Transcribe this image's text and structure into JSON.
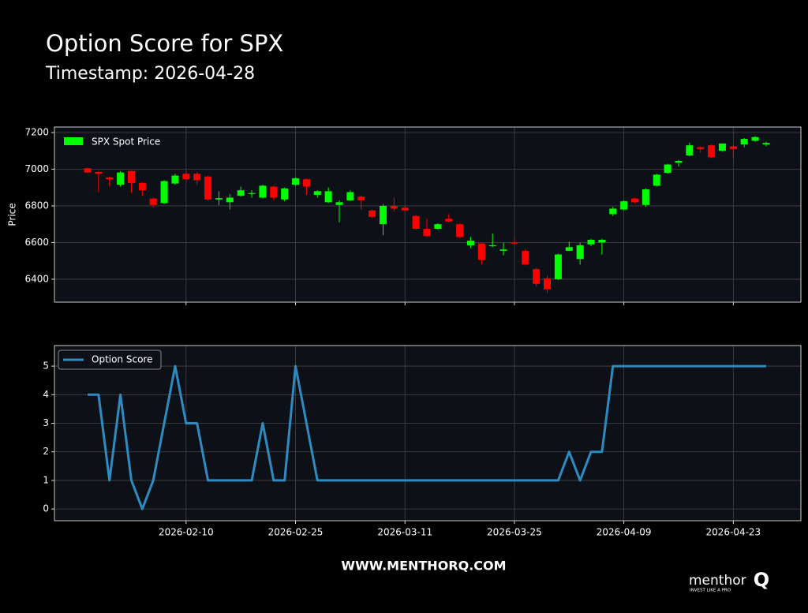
{
  "header": {
    "title": "Option Score for SPX",
    "subtitle": "Timestamp: 2026-04-28"
  },
  "chart_data": [
    {
      "type": "candlestick",
      "ylabel": "Price",
      "series": [
        {
          "name": "SPX Spot Price",
          "color": "#00ff00",
          "down_color": "#ff0000",
          "open": [
            7005,
            6985,
            6955,
            6915,
            6990,
            6925,
            6840,
            6815,
            6922,
            6975,
            6975,
            6960,
            6835,
            6820,
            6855,
            6865,
            6845,
            6905,
            6835,
            6915,
            6945,
            6860,
            6820,
            6805,
            6830,
            6850,
            6775,
            6700,
            6800,
            6790,
            6745,
            6675,
            6675,
            6730,
            6700,
            6585,
            6595,
            6580,
            6555,
            6602,
            6555,
            6455,
            6405,
            6400,
            6555,
            6510,
            6590,
            6600,
            6755,
            6780,
            6840,
            6805,
            6910,
            6980,
            7035,
            7075,
            7120,
            7130,
            7100,
            7125,
            7135,
            7155,
            7135
          ],
          "high": [
            7008,
            6990,
            6960,
            6990,
            6995,
            6930,
            6845,
            6940,
            6975,
            6985,
            6985,
            6965,
            6880,
            6865,
            6905,
            6885,
            6915,
            6910,
            6900,
            6955,
            6950,
            6885,
            6900,
            6830,
            6885,
            6855,
            6780,
            6810,
            6845,
            6800,
            6750,
            6730,
            6705,
            6755,
            6705,
            6630,
            6600,
            6650,
            6600,
            6625,
            6565,
            6460,
            6420,
            6540,
            6605,
            6600,
            6620,
            6620,
            6795,
            6830,
            6845,
            6895,
            6975,
            7030,
            7050,
            7145,
            7125,
            7135,
            7140,
            7130,
            7170,
            7180,
            7150
          ],
          "low": [
            6978,
            6875,
            6905,
            6905,
            6870,
            6855,
            6790,
            6810,
            6915,
            6940,
            6915,
            6830,
            6805,
            6780,
            6850,
            6845,
            6840,
            6830,
            6825,
            6910,
            6860,
            6845,
            6815,
            6710,
            6825,
            6780,
            6735,
            6640,
            6770,
            6770,
            6670,
            6630,
            6670,
            6710,
            6625,
            6570,
            6480,
            6575,
            6530,
            6590,
            6475,
            6360,
            6325,
            6395,
            6555,
            6480,
            6580,
            6535,
            6745,
            6775,
            6815,
            6795,
            6905,
            6975,
            7015,
            7070,
            7090,
            7060,
            7095,
            7060,
            7120,
            7150,
            7125
          ],
          "close": [
            6982,
            6975,
            6945,
            6982,
            6925,
            6885,
            6805,
            6935,
            6965,
            6945,
            6940,
            6835,
            6842,
            6845,
            6885,
            6870,
            6910,
            6845,
            6895,
            6950,
            6905,
            6880,
            6880,
            6820,
            6875,
            6830,
            6740,
            6800,
            6785,
            6775,
            6675,
            6635,
            6700,
            6715,
            6630,
            6610,
            6505,
            6585,
            6562,
            6595,
            6480,
            6375,
            6345,
            6535,
            6575,
            6585,
            6615,
            6615,
            6785,
            6825,
            6820,
            6890,
            6970,
            7025,
            7045,
            7130,
            7110,
            7065,
            7140,
            7110,
            7165,
            7175,
            7143
          ]
        }
      ],
      "ylim": [
        6275,
        7230
      ],
      "yticks": [
        6400,
        6600,
        6800,
        7000,
        7200
      ],
      "grid": true,
      "legend": "upper left"
    },
    {
      "type": "line",
      "categories": [
        null,
        null,
        null,
        null,
        null,
        null,
        null,
        null,
        null,
        "2026-02-10",
        null,
        null,
        null,
        null,
        null,
        null,
        null,
        null,
        null,
        "2026-02-25",
        null,
        null,
        null,
        null,
        null,
        null,
        null,
        null,
        null,
        "2026-03-11",
        null,
        null,
        null,
        null,
        null,
        null,
        null,
        null,
        null,
        "2026-03-25",
        null,
        null,
        null,
        null,
        null,
        null,
        null,
        null,
        null,
        "2026-04-09",
        null,
        null,
        null,
        null,
        null,
        null,
        null,
        null,
        null,
        "2026-04-23",
        null,
        null,
        null
      ],
      "series": [
        {
          "name": "Option Score",
          "color": "#2e8bc0",
          "values": [
            4,
            4,
            1,
            4,
            1,
            0,
            1,
            3,
            5,
            3,
            3,
            1,
            1,
            1,
            1,
            1,
            3,
            1,
            1,
            5,
            3,
            1,
            1,
            1,
            1,
            1,
            1,
            1,
            1,
            1,
            1,
            1,
            1,
            1,
            1,
            1,
            1,
            1,
            1,
            1,
            1,
            1,
            1,
            1,
            2,
            1,
            2,
            2,
            5,
            5,
            5,
            5,
            5,
            5,
            5,
            5,
            5,
            5,
            5,
            5,
            5,
            5,
            5
          ]
        }
      ],
      "ylim": [
        -0.41,
        5.72
      ],
      "yticks": [
        0,
        1,
        2,
        3,
        4,
        5
      ],
      "grid": true,
      "legend": "upper left"
    }
  ],
  "footer": {
    "url": "WWW.MENTHORQ.COM",
    "brand": "menthor",
    "brand_mark": "Q",
    "tagline": "INVEST LIKE A PRO"
  }
}
